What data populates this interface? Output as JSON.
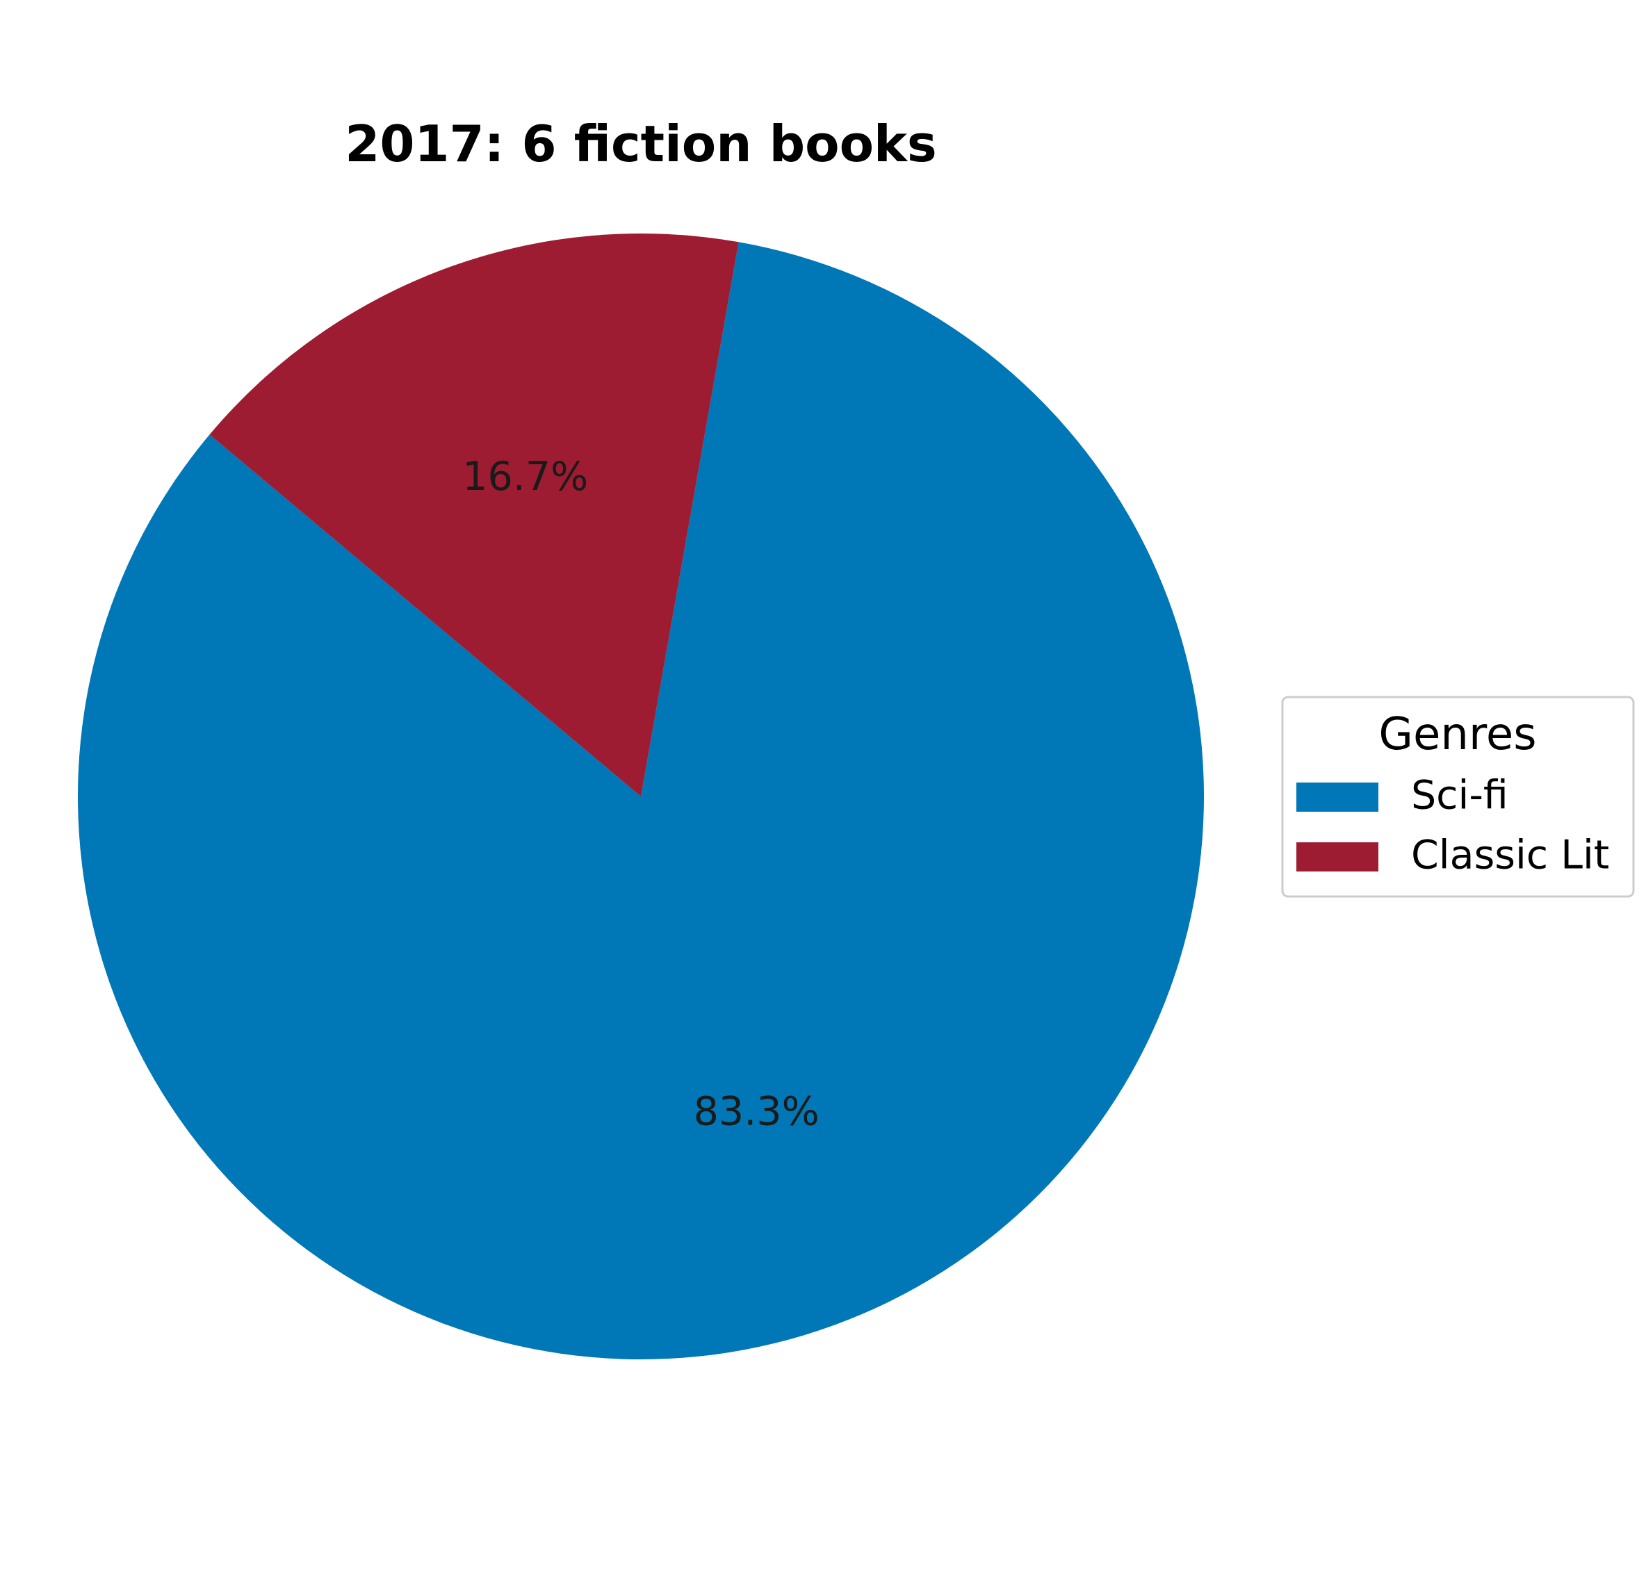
{
  "chart_data": {
    "type": "pie",
    "title": "2017: 6 fiction books",
    "slices": [
      {
        "name": "Sci-fi",
        "value": 5,
        "percent_label": "83.3%",
        "color": "#0077b6"
      },
      {
        "name": "Classic Lit",
        "value": 1,
        "percent_label": "16.7%",
        "color": "#9e1c32"
      }
    ],
    "start_angle_deg": 140,
    "counterclockwise": true,
    "legend": {
      "title": "Genres",
      "placement": "center-right"
    }
  }
}
